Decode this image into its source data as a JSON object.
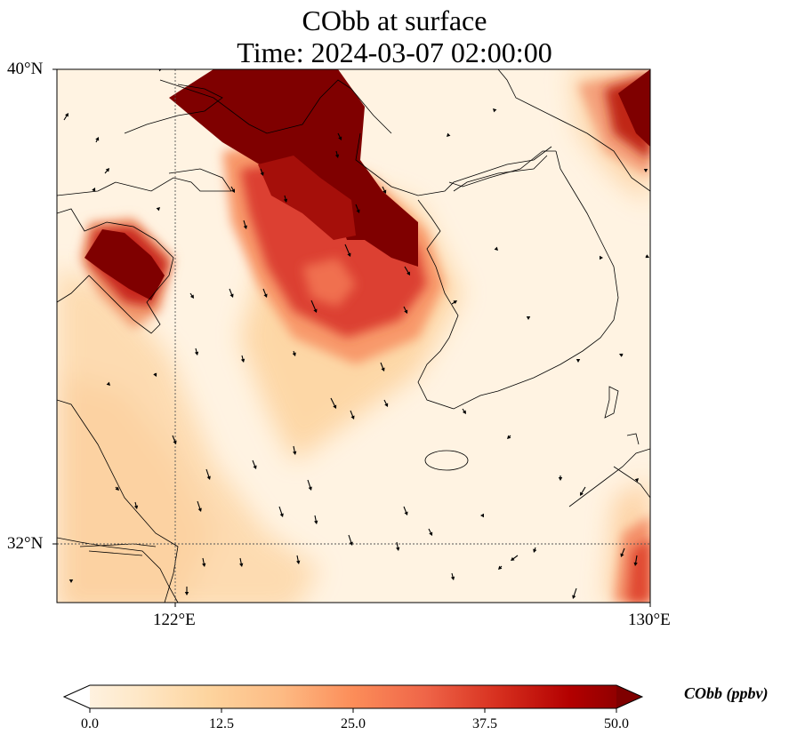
{
  "title": {
    "line1": "CObb at surface",
    "line2": "Time: 2024-03-07 02:00:00"
  },
  "axes": {
    "lat_labels": [
      "40°N",
      "32°N"
    ],
    "lon_labels": [
      "122°E",
      "130°E"
    ],
    "extent": {
      "lon_min": 120,
      "lon_max": 130,
      "lat_min": 31,
      "lat_max": 40
    }
  },
  "colorbar": {
    "label": "CObb (ppbv)",
    "ticks": [
      "0.0",
      "12.5",
      "25.0",
      "37.5",
      "50.0"
    ],
    "range": [
      0,
      50
    ],
    "extend": "both",
    "colormap": "OrRd",
    "stops": [
      "#fff7ec",
      "#fee8c8",
      "#fdd49e",
      "#fdbb84",
      "#fc8d59",
      "#ef6548",
      "#d7301f",
      "#b30000",
      "#7f0000"
    ]
  },
  "field": {
    "unit": "ppbv",
    "plumes": [
      {
        "name": "northern-plume",
        "lon": 124.8,
        "lat": 38.6,
        "level": 50
      },
      {
        "name": "bohai-plume",
        "lon": 126.0,
        "lat": 37.6,
        "level": 50
      },
      {
        "name": "central-plume",
        "lon": 124.9,
        "lat": 36.7,
        "level": 40
      },
      {
        "name": "shandong-plume",
        "lon": 121.0,
        "lat": 36.7,
        "level": 50
      },
      {
        "name": "northeast-corner-plume",
        "lon": 130.0,
        "lat": 39.5,
        "level": 50
      },
      {
        "name": "southeast-corner-plume",
        "lon": 130.0,
        "lat": 31.2,
        "level": 30
      }
    ]
  },
  "wind_arrows_description": "southward surface wind vectors"
}
